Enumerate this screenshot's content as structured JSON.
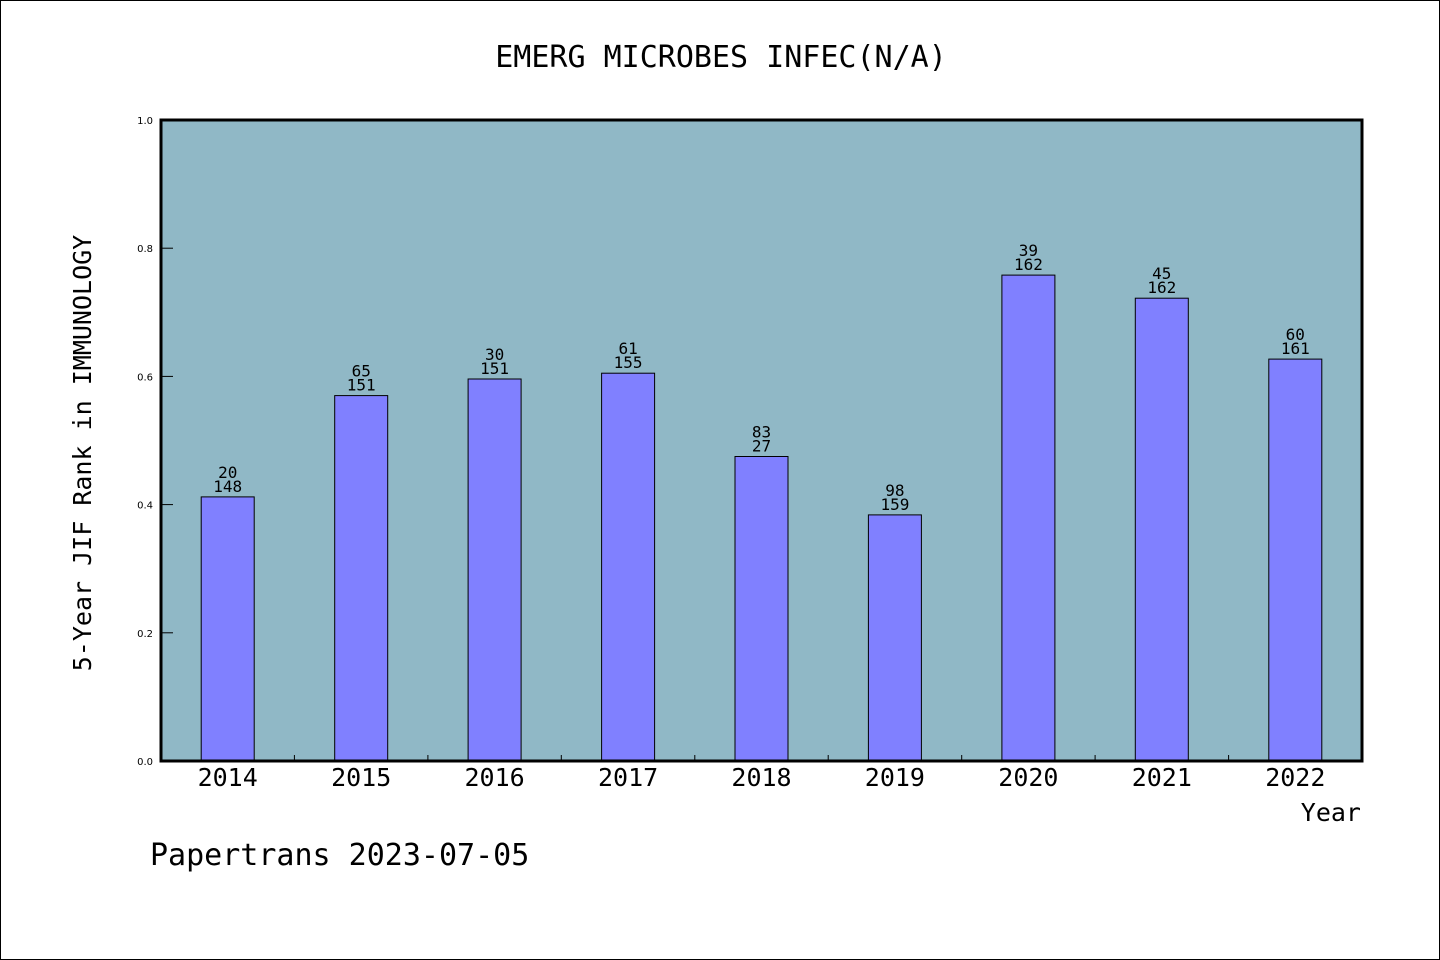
{
  "chart_data": {
    "type": "bar",
    "title": "EMERG MICROBES INFEC(N/A)",
    "xlabel": "Year",
    "ylabel": "5-Year JIF Rank in IMMUNOLOGY",
    "ylim": [
      0.0,
      1.0
    ],
    "yticks": [
      "0.0",
      "0.2",
      "0.4",
      "0.6",
      "0.8",
      "1.0"
    ],
    "categories": [
      "2014",
      "2015",
      "2016",
      "2017",
      "2018",
      "2019",
      "2020",
      "2021",
      "2022"
    ],
    "values": [
      0.412,
      0.57,
      0.596,
      0.605,
      0.475,
      0.384,
      0.758,
      0.722,
      0.627
    ],
    "rank": [
      "20",
      "65",
      "30",
      "61",
      "83",
      "98",
      "39",
      "45",
      "60"
    ],
    "total": [
      "148",
      "151",
      "151",
      "155",
      "27",
      "159",
      "162",
      "162",
      "161"
    ],
    "grid": false,
    "legend": "none"
  },
  "colors": {
    "plot_background": "#90b8c6",
    "bar_fill": "#8080ff",
    "bar_stroke": "#000000"
  },
  "footer": "Papertrans 2023-07-05"
}
